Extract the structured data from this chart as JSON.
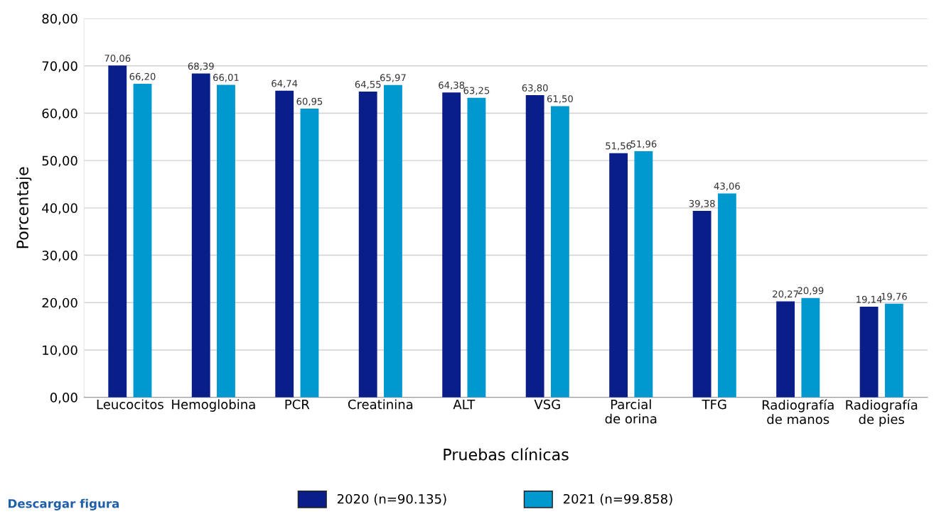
{
  "chart_data": {
    "type": "bar",
    "xlabel": "Pruebas clínicas",
    "ylabel": "Porcentaje",
    "categories": [
      "Leucocitos",
      "Hemoglobina",
      "PCR",
      "Creatinina",
      "ALT",
      "VSG",
      "Parcial\nde orina",
      "TFG",
      "Radiografía\nde manos",
      "Radiografía\nde pies"
    ],
    "series": [
      {
        "name": "2020 (n=90.135)",
        "color": "#0a1e8a",
        "values": [
          70.06,
          68.39,
          64.74,
          64.55,
          64.38,
          63.8,
          51.56,
          39.38,
          20.27,
          19.14
        ],
        "value_labels": [
          "70,06",
          "68,39",
          "64,74",
          "64,55",
          "64,38",
          "63,80",
          "51,56",
          "39,38",
          "20,27",
          "19,14"
        ]
      },
      {
        "name": "2021 (n=99.858)",
        "color": "#0099cf",
        "values": [
          66.2,
          66.01,
          60.95,
          65.97,
          63.25,
          61.5,
          51.96,
          43.06,
          20.99,
          19.76
        ],
        "value_labels": [
          "66,20",
          "66,01",
          "60,95",
          "65,97",
          "63,25",
          "61,50",
          "51,96",
          "43,06",
          "20,99",
          "19,76"
        ]
      }
    ],
    "ylim": [
      0,
      80
    ],
    "yticks": [
      {
        "value": 0,
        "label": "0,00"
      },
      {
        "value": 10,
        "label": "10,00"
      },
      {
        "value": 20,
        "label": "20,00"
      },
      {
        "value": 30,
        "label": "30,00"
      },
      {
        "value": 40,
        "label": "40,00"
      },
      {
        "value": 50,
        "label": "50,00"
      },
      {
        "value": 60,
        "label": "60,00"
      },
      {
        "value": 70,
        "label": "70,00"
      },
      {
        "value": 80,
        "label": "80,00"
      }
    ],
    "grid": "y",
    "legend": "bottom",
    "annotations": [
      "Descargar figura"
    ]
  }
}
